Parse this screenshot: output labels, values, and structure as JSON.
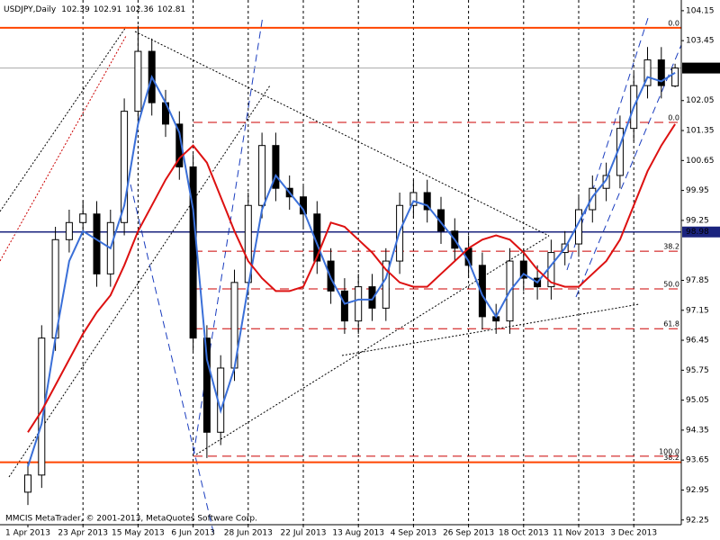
{
  "chart_data": {
    "type": "candlestick",
    "title": "USDJPY,Daily",
    "annotation": "MMCIS MetaTrader, © 2001-2013, MetaQuotes Software Corp.",
    "categories": [
      "1 Apr 2013",
      null,
      null,
      null,
      "23 Apr 2013",
      null,
      null,
      null,
      "15 May 2013",
      null,
      null,
      null,
      "6 Jun 2013",
      null,
      null,
      null,
      "28 Jun 2013",
      null,
      null,
      null,
      "22 Jul 2013",
      null,
      null,
      null,
      "13 Aug 2013",
      null,
      null,
      null,
      "4 Sep 2013",
      null,
      null,
      null,
      "26 Sep 2013",
      null,
      null,
      null,
      "18 Oct 2013",
      null,
      null,
      null,
      "11 Nov 2013",
      null,
      null,
      null,
      "3 Dec 2013",
      null,
      null,
      null
    ],
    "open": [
      92.9,
      93.3,
      96.5,
      98.8,
      99.2,
      99.4,
      98.0,
      99.2,
      101.8,
      103.2,
      102.0,
      101.5,
      100.5,
      96.5,
      94.3,
      95.8,
      97.8,
      99.6,
      101.0,
      100.0,
      99.8,
      99.4,
      98.3,
      97.6,
      96.9,
      97.7,
      97.2,
      98.3,
      99.6,
      99.9,
      99.5,
      99.0,
      98.6,
      98.2,
      97.0,
      96.9,
      98.3,
      97.9,
      97.7,
      98.5,
      98.7,
      99.5,
      100.0,
      100.3,
      101.4,
      102.4,
      103.0,
      102.39
    ],
    "high": [
      93.6,
      96.8,
      99.1,
      99.5,
      99.7,
      99.7,
      99.5,
      102.1,
      103.8,
      103.5,
      102.3,
      101.8,
      100.8,
      96.8,
      96.1,
      98.1,
      99.9,
      101.3,
      101.3,
      100.3,
      100.1,
      99.7,
      98.6,
      97.9,
      98.0,
      98.0,
      98.6,
      99.9,
      100.2,
      100.2,
      99.8,
      99.3,
      98.9,
      98.5,
      97.3,
      98.6,
      98.6,
      98.2,
      98.8,
      99.0,
      99.8,
      100.3,
      100.6,
      101.7,
      102.7,
      103.3,
      103.3,
      102.91
    ],
    "low": [
      92.6,
      93.0,
      96.2,
      98.5,
      98.9,
      97.7,
      97.7,
      98.9,
      101.5,
      101.7,
      101.2,
      100.2,
      96.2,
      93.7,
      94.0,
      95.5,
      97.5,
      99.3,
      99.7,
      99.5,
      99.1,
      98.0,
      97.3,
      96.6,
      96.6,
      96.9,
      96.9,
      98.0,
      99.3,
      99.2,
      98.7,
      98.3,
      97.9,
      96.7,
      96.6,
      96.6,
      97.6,
      97.4,
      97.4,
      98.2,
      98.4,
      99.2,
      99.7,
      100.0,
      101.1,
      102.1,
      102.1,
      102.36
    ],
    "close": [
      93.3,
      96.5,
      98.8,
      99.2,
      99.4,
      98.0,
      99.2,
      101.8,
      103.2,
      102.0,
      101.5,
      100.5,
      96.5,
      94.3,
      95.8,
      97.8,
      99.6,
      101.0,
      100.0,
      99.8,
      99.4,
      98.3,
      97.6,
      96.9,
      97.7,
      97.2,
      98.3,
      99.6,
      99.9,
      99.5,
      99.0,
      98.6,
      98.2,
      97.0,
      96.9,
      98.3,
      97.9,
      97.7,
      98.5,
      98.7,
      99.5,
      100.0,
      100.3,
      101.4,
      102.4,
      103.0,
      102.4,
      102.81
    ],
    "lines": [
      {
        "color": "#3a6fd8",
        "values": [
          93.5,
          94.5,
          96.5,
          98.3,
          99.0,
          98.8,
          98.6,
          99.6,
          101.5,
          102.6,
          102.0,
          101.3,
          99.5,
          96.0,
          94.8,
          95.8,
          97.7,
          99.5,
          100.3,
          99.9,
          99.5,
          98.7,
          97.9,
          97.3,
          97.4,
          97.4,
          97.9,
          99.0,
          99.7,
          99.6,
          99.2,
          98.8,
          98.3,
          97.5,
          97.0,
          97.6,
          98.0,
          97.8,
          98.2,
          98.6,
          99.2,
          99.8,
          100.2,
          101.0,
          101.9,
          102.6,
          102.5,
          102.7
        ]
      },
      {
        "color": "#dd1111",
        "values": [
          94.3,
          94.8,
          95.4,
          96.0,
          96.6,
          97.1,
          97.5,
          98.2,
          99.0,
          99.6,
          100.2,
          100.7,
          101.0,
          100.6,
          99.8,
          99.0,
          98.3,
          97.9,
          97.6,
          97.6,
          97.7,
          98.4,
          99.2,
          99.1,
          98.8,
          98.5,
          98.1,
          97.8,
          97.7,
          97.7,
          98.0,
          98.3,
          98.6,
          98.8,
          98.9,
          98.8,
          98.5,
          98.1,
          97.8,
          97.7,
          97.7,
          98.0,
          98.3,
          98.8,
          99.6,
          100.4,
          101.0,
          101.5
        ]
      }
    ],
    "levels": [
      {
        "value": 103.75,
        "label": "0.0",
        "color": "#ff4500",
        "style": "solid"
      },
      {
        "value": 93.6,
        "label": "38.2",
        "color": "#ff4500",
        "style": "solid"
      },
      {
        "value": 101.54,
        "label": "0.0",
        "color": "#cc0000",
        "style": "dashed"
      },
      {
        "value": 98.53,
        "label": "38.2",
        "color": "#cc0000",
        "style": "dashed"
      },
      {
        "value": 97.65,
        "label": "50.0",
        "color": "#cc0000",
        "style": "dashed"
      },
      {
        "value": 96.72,
        "label": "61.8",
        "color": "#cc0000",
        "style": "dashed"
      },
      {
        "value": 93.74,
        "label": "100.0",
        "color": "#cc0000",
        "style": "dashed"
      }
    ],
    "hline": {
      "value": 98.98,
      "label": "98.98",
      "color": "#1a237e"
    },
    "ylim": [
      92.14,
      104.4
    ],
    "yticks": [
      104.15,
      103.45,
      102.05,
      101.35,
      100.65,
      99.95,
      99.25,
      97.85,
      97.15,
      96.45,
      95.75,
      95.05,
      94.35,
      93.65,
      92.95,
      92.25
    ],
    "grid": true
  }
}
